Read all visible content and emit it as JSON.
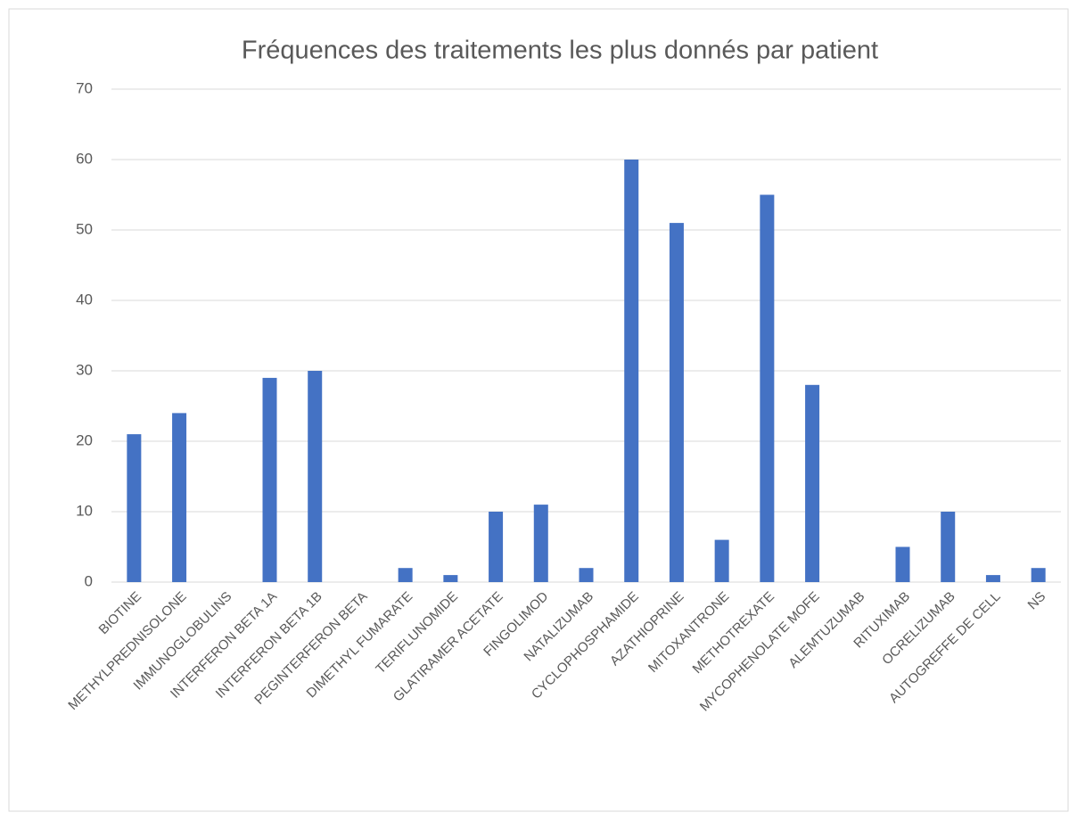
{
  "chart_data": {
    "type": "bar",
    "title": "Fréquences des traitements les plus donnés par patient",
    "categories": [
      "BIOTINE",
      "METHYLPREDNISOLONE",
      "IMMUNOGLOBULINS",
      "INTERFERON BETA 1A",
      "INTERFERON BETA 1B",
      "PEGINTERFERON BETA",
      "DIMETHYL FUMARATE",
      "TERIFLUNOMIDE",
      "GLATIRAMER ACETATE",
      "FINGOLIMOD",
      "NATALIZUMAB",
      "CYCLOPHOSPHAMIDE",
      "AZATHIOPRINE",
      "MITOXANTRONE",
      "METHOTREXATE",
      "MYCOPHENOLATE MOFE",
      "ALEMTUZUMAB",
      "RITUXIMAB",
      "OCRELIZUMAB",
      "AUTOGREFFE DE CELL",
      "NS"
    ],
    "values": [
      21,
      24,
      0,
      29,
      30,
      0,
      2,
      1,
      10,
      11,
      2,
      60,
      51,
      6,
      55,
      28,
      0,
      5,
      10,
      1,
      2
    ],
    "color": "#4472c4",
    "ylim": [
      0,
      70
    ],
    "yticks": [
      0,
      10,
      20,
      30,
      40,
      50,
      60,
      70
    ],
    "grid": true
  }
}
